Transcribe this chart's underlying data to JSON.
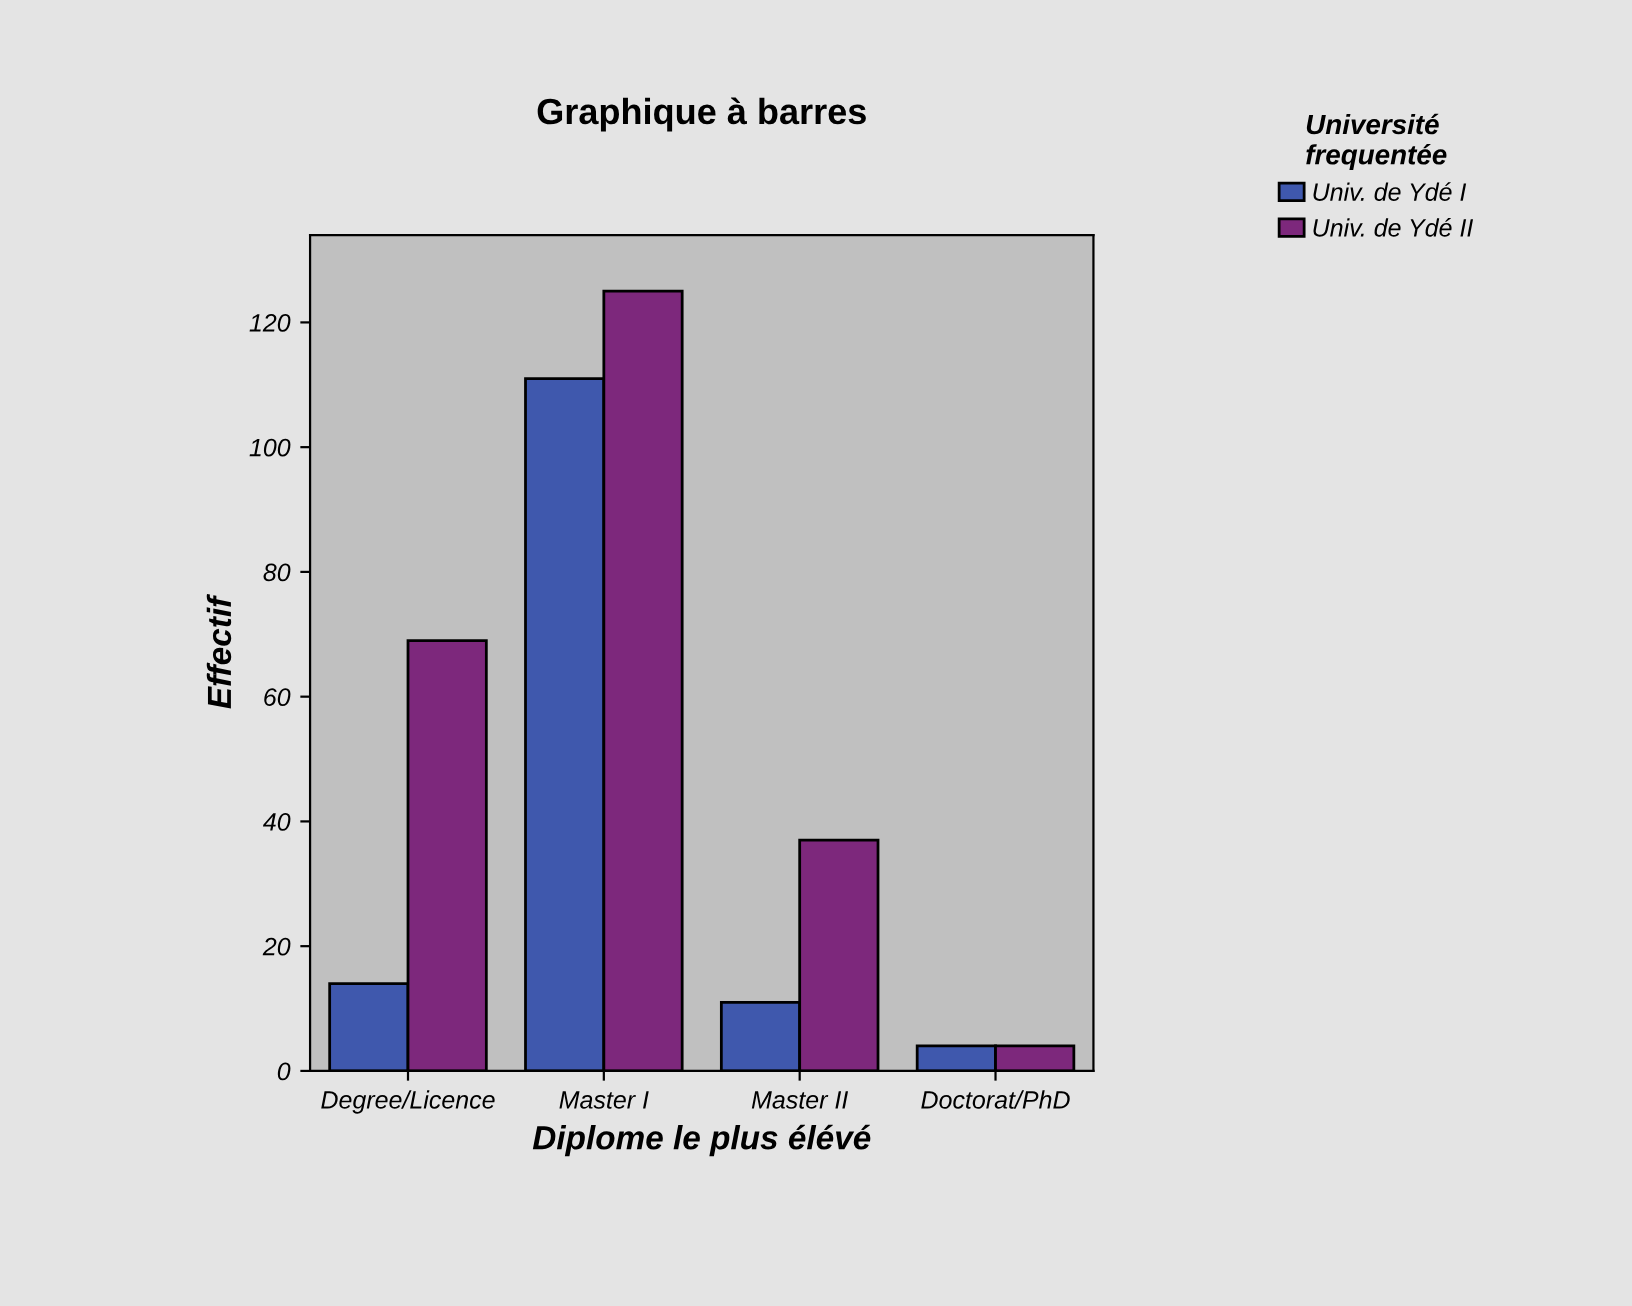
{
  "chart_data": {
    "type": "bar",
    "title": "Graphique à barres",
    "xlabel": "Diplome le plus élévé",
    "ylabel": "Effectif",
    "legend_title": "Université\nfrequentée",
    "categories": [
      "Degree/Licence",
      "Master I",
      "Master II",
      "Doctorat/PhD"
    ],
    "series": [
      {
        "name": "Univ. de Ydé I",
        "color": "#3f58ad",
        "values": [
          14,
          111,
          11,
          4
        ]
      },
      {
        "name": "Univ. de Ydé II",
        "color": "#7d287c",
        "values": [
          69,
          125,
          37,
          4
        ]
      }
    ],
    "ylim": [
      0,
      134
    ],
    "yticks": [
      0,
      20,
      40,
      60,
      80,
      100,
      120
    ],
    "grid": false,
    "legend": "right"
  }
}
